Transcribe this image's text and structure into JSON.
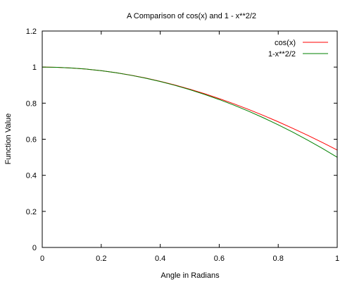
{
  "chart_data": {
    "type": "line",
    "title": "A Comparison of cos(x) and 1 - x**2/2",
    "xlabel": "Angle in Radians",
    "ylabel": "Function Value",
    "xlim": [
      0,
      1
    ],
    "ylim": [
      0,
      1.2
    ],
    "x_ticks": [
      "0",
      "0.2",
      "0.4",
      "0.6",
      "0.8",
      "1"
    ],
    "y_ticks": [
      "0",
      "0.2",
      "0.4",
      "0.6",
      "0.8",
      "1",
      "1.2"
    ],
    "grid": false,
    "legend_position": "top-right",
    "x": [
      0,
      0.05,
      0.1,
      0.15,
      0.2,
      0.25,
      0.3,
      0.35,
      0.4,
      0.45,
      0.5,
      0.55,
      0.6,
      0.65,
      0.7,
      0.75,
      0.8,
      0.85,
      0.9,
      0.95,
      1.0
    ],
    "series": [
      {
        "name": "cos(x)",
        "color": "#ff0000",
        "values": [
          1.0,
          0.9988,
          0.995,
          0.9888,
          0.9801,
          0.9689,
          0.9553,
          0.9394,
          0.9211,
          0.9004,
          0.8776,
          0.8525,
          0.8253,
          0.7961,
          0.7648,
          0.7317,
          0.6967,
          0.66,
          0.6216,
          0.5817,
          0.5403
        ]
      },
      {
        "name": "1-x**2/2",
        "color": "#008000",
        "values": [
          1.0,
          0.99875,
          0.995,
          0.98875,
          0.98,
          0.96875,
          0.955,
          0.93875,
          0.92,
          0.89875,
          0.875,
          0.84875,
          0.82,
          0.78875,
          0.755,
          0.71875,
          0.68,
          0.63875,
          0.595,
          0.54875,
          0.5
        ]
      }
    ]
  }
}
